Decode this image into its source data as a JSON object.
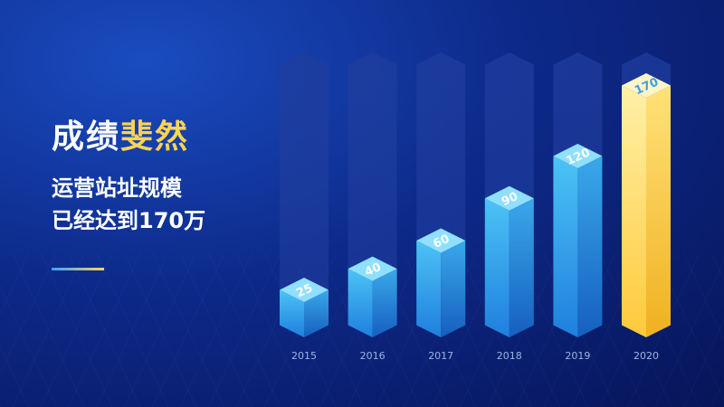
{
  "headline": {
    "prefix": "成绩",
    "accent": "斐然"
  },
  "subtitle": {
    "line1": "运营站址规模",
    "line2": "已经达到170万"
  },
  "colors": {
    "accent": "#ffd452",
    "bar_blue_front_top": "#4cc3f5",
    "bar_blue_front_bottom": "#1f7fde",
    "bar_blue_side_top": "#3aa8ea",
    "bar_blue_side_bottom": "#165fbf",
    "bar_blue_top": "#8fe0ff",
    "bar_gold_front_top": "#fff1a8",
    "bar_gold_front_bottom": "#ffc93a",
    "bar_gold_side_top": "#ffe27a",
    "bar_gold_side_bottom": "#f0b020",
    "bar_gold_top": "#fff6c8",
    "track": "#1f3d9e",
    "tick_label": "#9fb3e0"
  },
  "chart_data": {
    "type": "bar",
    "categories": [
      "2015",
      "2016",
      "2017",
      "2018",
      "2019",
      "2020"
    ],
    "values": [
      25,
      40,
      60,
      90,
      120,
      170
    ],
    "highlight_index": 5,
    "ylim": [
      0,
      170
    ]
  }
}
